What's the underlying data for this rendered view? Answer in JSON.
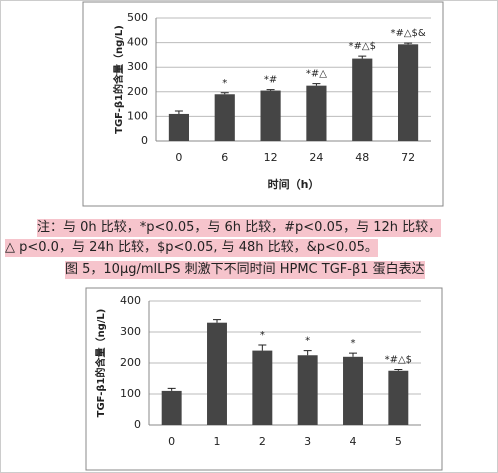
{
  "chart_data": [
    {
      "type": "bar",
      "categories": [
        "0",
        "6",
        "12",
        "24",
        "48",
        "72"
      ],
      "values": [
        110,
        190,
        205,
        225,
        335,
        393
      ],
      "errors": [
        12,
        6,
        4,
        8,
        10,
        5
      ],
      "annotations": [
        null,
        "*",
        "*#",
        "*#△",
        "*#△$",
        "*#△$&"
      ],
      "ylim": [
        0,
        500
      ],
      "yticks": [
        0,
        100,
        200,
        300,
        400,
        500
      ],
      "grid": true,
      "color": "#454545",
      "ylabel": "TGF-β1的含量（ng/L)",
      "xlabel": "时间（h）"
    },
    {
      "type": "bar",
      "categories": [
        "0",
        "1",
        "2",
        "3",
        "4",
        "5"
      ],
      "values": [
        110,
        330,
        240,
        225,
        220,
        175
      ],
      "errors": [
        8,
        10,
        18,
        15,
        12,
        4
      ],
      "annotations": [
        null,
        null,
        "*",
        "*",
        "*",
        "*#△$"
      ],
      "ylim": [
        0,
        400
      ],
      "yticks": [
        0,
        100,
        200,
        300,
        400
      ],
      "grid": true,
      "color": "#454545",
      "ylabel": "TGF-β1的含量（ng/L)"
    }
  ],
  "note": [
    "注：与 0h 比较，*p<0.05，与 6h 比较，#p<0.05，与 12h 比较，",
    "△ p<0.0，与 24h 比较，$p<0.05, 与 48h 比较，&p<0.05。"
  ],
  "caption": "图 5，10μg/mlLPS 刺激下不同时间 HPMC TGF-β1 蛋白表达"
}
